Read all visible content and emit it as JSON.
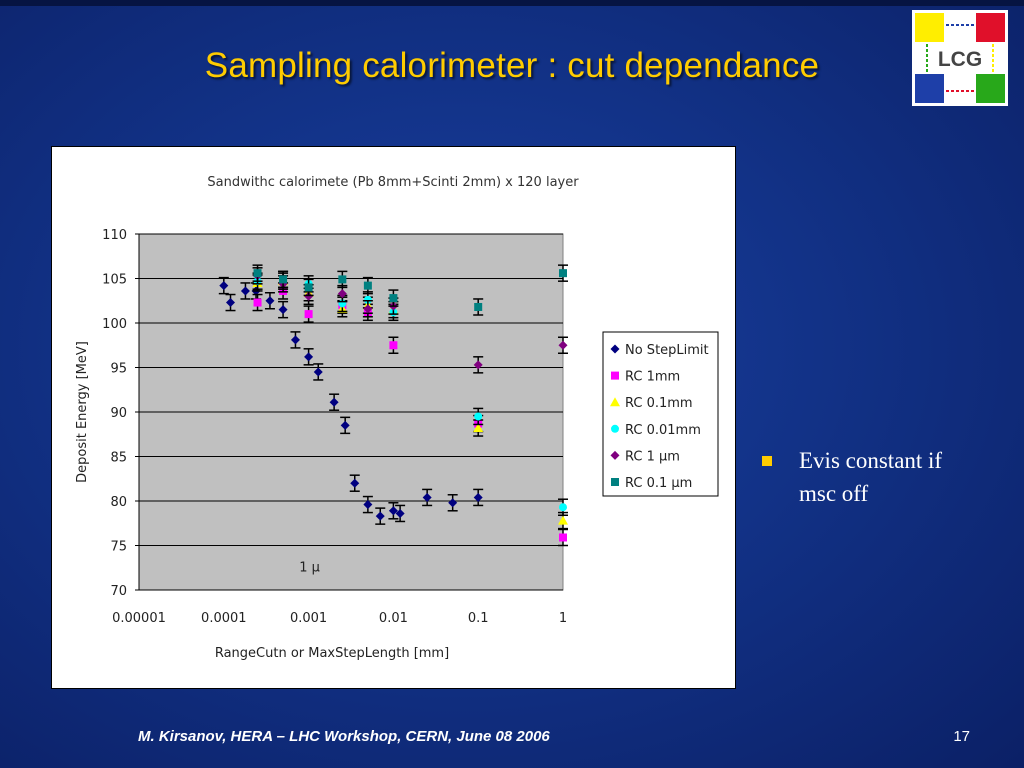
{
  "slide": {
    "title": "Sampling calorimeter : cut dependance",
    "bullet": "Evis constant if msc off",
    "footer": "M. Kirsanov, HERA – LHC Workshop, CERN, June 08 2006",
    "page_number": "17",
    "logo_text": "LCG"
  },
  "colors": {
    "title": "#ffcc00",
    "bullet_marker": "#ffcc00",
    "plot_bg": "#c0c0c0"
  },
  "chart_data": {
    "type": "scatter",
    "title": "Sandwithc calorimete (Pb 8mm+Scinti 2mm) x 120 layer",
    "xlabel": "RangeCutn or MaxStepLength [mm]",
    "ylabel": "Deposit Energy [MeV]",
    "x_scale": "log",
    "xlim": [
      1e-05,
      1
    ],
    "ylim": [
      70,
      110
    ],
    "x_ticks": [
      "0.00001",
      "0.0001",
      "0.001",
      "0.01",
      "0.1",
      "1"
    ],
    "y_ticks": [
      "70",
      "75",
      "80",
      "85",
      "90",
      "95",
      "100",
      "105",
      "110"
    ],
    "grid": "horizontal",
    "legend_position": "right",
    "annotation": "1 μ",
    "series": [
      {
        "name": "No StepLimit",
        "marker": "diamond",
        "color": "#000080",
        "x": [
          0.0001,
          0.00012,
          0.00018,
          0.00024,
          0.00035,
          0.0005,
          0.0007,
          0.001,
          0.0013,
          0.002,
          0.0027,
          0.0035,
          0.005,
          0.007,
          0.01,
          0.012,
          0.025,
          0.05,
          0.1
        ],
        "y": [
          104.2,
          102.3,
          103.6,
          103.6,
          102.5,
          101.5,
          98.1,
          96.2,
          94.5,
          91.1,
          88.5,
          82.0,
          79.6,
          78.3,
          78.9,
          78.6,
          80.4,
          79.8,
          80.4
        ]
      },
      {
        "name": "RC 1mm",
        "marker": "square",
        "color": "#ff00ff",
        "x": [
          0.00025,
          0.0005,
          0.001,
          0.0025,
          0.005,
          0.01,
          0.1,
          1
        ],
        "y": [
          102.3,
          103.6,
          101.0,
          102.0,
          101.2,
          97.5,
          88.7,
          75.9
        ]
      },
      {
        "name": "RC 0.1mm",
        "marker": "triangle",
        "color": "#ffff00",
        "x": [
          0.00025,
          0.0005,
          0.001,
          0.0025,
          0.005,
          0.01,
          0.1,
          1
        ],
        "y": [
          104.5,
          104.7,
          103.4,
          101.6,
          102.0,
          101.5,
          88.2,
          77.8
        ]
      },
      {
        "name": "RC 0.01mm",
        "marker": "circle",
        "color": "#00ffff",
        "x": [
          0.00025,
          0.0005,
          0.001,
          0.0025,
          0.005,
          0.01,
          0.1,
          1
        ],
        "y": [
          104.7,
          104.9,
          104.4,
          102.2,
          102.6,
          101.2,
          89.5,
          79.3
        ]
      },
      {
        "name": "RC 1 μm",
        "marker": "diamond",
        "color": "#800080",
        "x": [
          0.00025,
          0.0005,
          0.001,
          0.0025,
          0.005,
          0.01,
          0.1,
          1
        ],
        "y": [
          105.3,
          104.4,
          103.0,
          103.3,
          101.6,
          101.9,
          95.3,
          97.5
        ]
      },
      {
        "name": "RC 0.1 μm",
        "marker": "square",
        "color": "#008080",
        "x": [
          0.00025,
          0.0005,
          0.001,
          0.0025,
          0.005,
          0.01,
          0.1,
          1
        ],
        "y": [
          105.6,
          104.9,
          104.0,
          104.9,
          104.2,
          102.8,
          101.8,
          105.6
        ]
      }
    ]
  }
}
